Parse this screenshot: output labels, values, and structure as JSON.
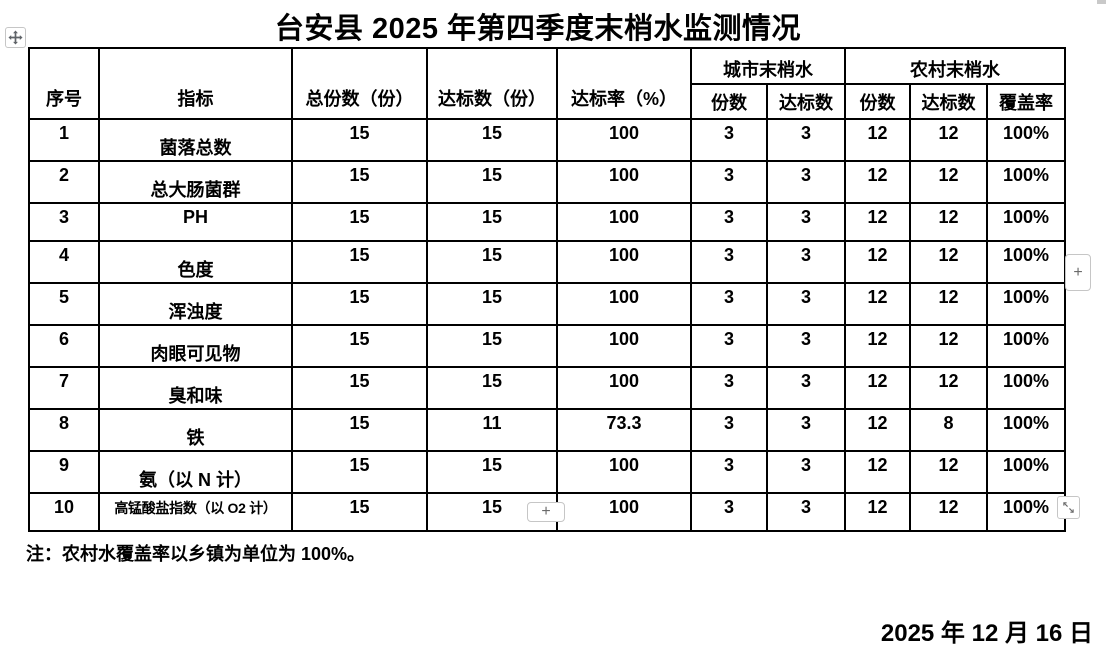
{
  "title": "台安县 2025 年第四季度末梢水监测情况",
  "table": {
    "headers": {
      "no": "序号",
      "indicator": "指标",
      "total": "总份数（份）",
      "qualified": "达标数（份）",
      "rate": "达标率（%）",
      "urban_group": "城市末梢水",
      "rural_group": "农村末梢水",
      "urban_count": "份数",
      "urban_qualified": "达标数",
      "rural_count": "份数",
      "rural_qualified": "达标数",
      "rural_coverage": "覆盖率"
    },
    "rows": [
      {
        "no": "1",
        "indicator": "菌落总数",
        "total": "15",
        "qualified": "15",
        "rate": "100",
        "urban_count": "3",
        "urban_qualified": "3",
        "rural_count": "12",
        "rural_qualified": "12",
        "coverage": "100%"
      },
      {
        "no": "2",
        "indicator": "总大肠菌群",
        "total": "15",
        "qualified": "15",
        "rate": "100",
        "urban_count": "3",
        "urban_qualified": "3",
        "rural_count": "12",
        "rural_qualified": "12",
        "coverage": "100%"
      },
      {
        "no": "3",
        "indicator": "PH",
        "total": "15",
        "qualified": "15",
        "rate": "100",
        "urban_count": "3",
        "urban_qualified": "3",
        "rural_count": "12",
        "rural_qualified": "12",
        "coverage": "100%"
      },
      {
        "no": "4",
        "indicator": "色度",
        "total": "15",
        "qualified": "15",
        "rate": "100",
        "urban_count": "3",
        "urban_qualified": "3",
        "rural_count": "12",
        "rural_qualified": "12",
        "coverage": "100%"
      },
      {
        "no": "5",
        "indicator": "浑浊度",
        "total": "15",
        "qualified": "15",
        "rate": "100",
        "urban_count": "3",
        "urban_qualified": "3",
        "rural_count": "12",
        "rural_qualified": "12",
        "coverage": "100%"
      },
      {
        "no": "6",
        "indicator": "肉眼可见物",
        "total": "15",
        "qualified": "15",
        "rate": "100",
        "urban_count": "3",
        "urban_qualified": "3",
        "rural_count": "12",
        "rural_qualified": "12",
        "coverage": "100%"
      },
      {
        "no": "7",
        "indicator": "臭和味",
        "total": "15",
        "qualified": "15",
        "rate": "100",
        "urban_count": "3",
        "urban_qualified": "3",
        "rural_count": "12",
        "rural_qualified": "12",
        "coverage": "100%"
      },
      {
        "no": "8",
        "indicator": "铁",
        "total": "15",
        "qualified": "11",
        "rate": "73.3",
        "urban_count": "3",
        "urban_qualified": "3",
        "rural_count": "12",
        "rural_qualified": "8",
        "coverage": "100%"
      },
      {
        "no": "9",
        "indicator": "氨（以 N 计）",
        "total": "15",
        "qualified": "15",
        "rate": "100",
        "urban_count": "3",
        "urban_qualified": "3",
        "rural_count": "12",
        "rural_qualified": "12",
        "coverage": "100%"
      },
      {
        "no": "10",
        "indicator": "高锰酸盐指数（以 O2 计）",
        "total": "15",
        "qualified": "15",
        "rate": "100",
        "urban_count": "3",
        "urban_qualified": "3",
        "rural_count": "12",
        "rural_qualified": "12",
        "coverage": "100%"
      }
    ]
  },
  "note": "注：农村水覆盖率以乡镇为单位为 100%。",
  "date": "2025 年 12 月 16 日",
  "controls": {
    "insert_col_label": "+",
    "insert_row_label": "+"
  }
}
